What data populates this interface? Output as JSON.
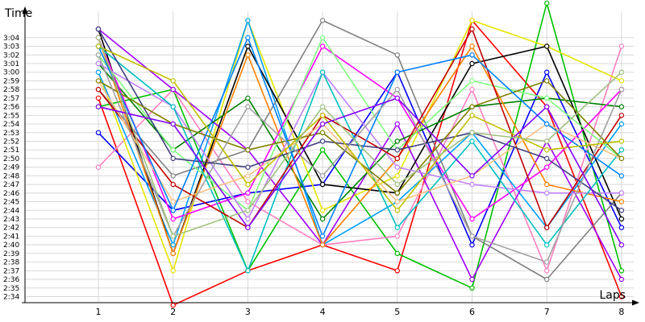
{
  "chart_data": {
    "type": "line",
    "xlabel": "Laps",
    "ylabel": "Time",
    "x": [
      1,
      2,
      3,
      4,
      5,
      6,
      7,
      8
    ],
    "y_ticks": [
      "2:34",
      "2:35",
      "2:36",
      "2:37",
      "2:38",
      "2:39",
      "2:40",
      "2:41",
      "2:42",
      "2:43",
      "2:44",
      "2:45",
      "2:46",
      "2:47",
      "2:48",
      "2:49",
      "2:50",
      "2:51",
      "2:52",
      "2:53",
      "2:54",
      "2:55",
      "2:56",
      "2:57",
      "2:58",
      "2:59",
      "3:00",
      "3:01",
      "3:02",
      "3:03",
      "3:04"
    ],
    "ylim_seconds": [
      153.3,
      186.5
    ],
    "grid": true,
    "series": [
      {
        "color": "#ff0000",
        "values": [
          177,
          153,
          157,
          160,
          157,
          186,
          176,
          154
        ]
      },
      {
        "color": "#00c000",
        "values": [
          176,
          178,
          157,
          171,
          159,
          155,
          188,
          157
        ]
      },
      {
        "color": "#0000ff",
        "values": [
          173,
          164,
          166,
          167,
          180,
          160,
          180,
          162
        ]
      },
      {
        "color": "#ff80c0",
        "values": [
          169,
          178,
          165,
          160,
          161,
          178,
          157,
          183
        ]
      },
      {
        "color": "#e6e600",
        "values": [
          180,
          157,
          186,
          164,
          168,
          186,
          183,
          179
        ]
      },
      {
        "color": "#00a0ff",
        "values": [
          180,
          160,
          186,
          160,
          165,
          173,
          162,
          174
        ]
      },
      {
        "color": "#a000ff",
        "values": [
          185,
          178,
          171,
          160,
          174,
          156,
          172,
          156
        ]
      },
      {
        "color": "#808080",
        "values": [
          178,
          168,
          171,
          186,
          182,
          161,
          156,
          166
        ]
      },
      {
        "color": "#000000",
        "values": [
          185,
          159,
          183,
          167,
          166,
          181,
          183,
          163
        ]
      },
      {
        "color": "#008000",
        "values": [
          181,
          171,
          177,
          163,
          172,
          176,
          177,
          176
        ]
      },
      {
        "color": "#ff8000",
        "values": [
          184,
          159,
          182,
          160,
          170,
          183,
          167,
          165
        ]
      },
      {
        "color": "#ff00ff",
        "values": [
          184,
          163,
          166,
          183,
          177,
          163,
          169,
          178
        ]
      },
      {
        "color": "#80ff80",
        "values": [
          182,
          171,
          164,
          184,
          171,
          179,
          177,
          170
        ]
      },
      {
        "color": "#c080ff",
        "values": [
          181,
          176,
          163,
          180,
          169,
          167,
          166,
          166
        ]
      },
      {
        "color": "#00c0c0",
        "values": [
          183,
          176,
          157,
          180,
          162,
          172,
          160,
          171
        ]
      },
      {
        "color": "#c00000",
        "values": [
          178,
          167,
          162,
          175,
          170,
          185,
          162,
          175
        ]
      },
      {
        "color": "#ffc080",
        "values": [
          179,
          165,
          168,
          174,
          165,
          168,
          174,
          170
        ]
      },
      {
        "color": "#404080",
        "values": [
          185,
          170,
          169,
          172,
          171,
          173,
          170,
          164
        ]
      },
      {
        "color": "#808000",
        "values": [
          179,
          174,
          171,
          173,
          166,
          176,
          179,
          170
        ]
      },
      {
        "color": "#0080ff",
        "values": [
          183,
          164,
          184,
          161,
          180,
          182,
          174,
          168
        ]
      },
      {
        "color": "#a0a0a0",
        "values": [
          182,
          161,
          176,
          168,
          178,
          161,
          158,
          178
        ]
      },
      {
        "color": "#c0c000",
        "values": [
          183,
          179,
          167,
          175,
          164,
          175,
          171,
          172
        ]
      },
      {
        "color": "#8000ff",
        "values": [
          176,
          174,
          162,
          174,
          177,
          168,
          176,
          160
        ]
      },
      {
        "color": "#a0c080",
        "values": [
          184,
          161,
          164,
          176,
          167,
          173,
          172,
          180
        ]
      }
    ]
  }
}
